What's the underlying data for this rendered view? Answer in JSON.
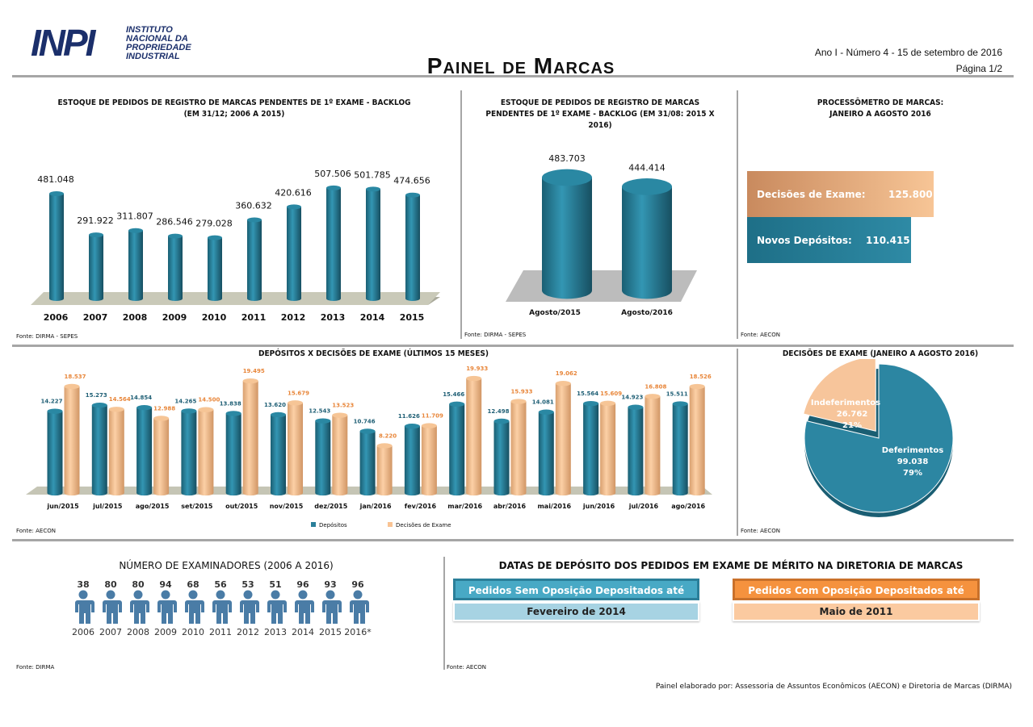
{
  "header": {
    "logo_mark": "INPI",
    "logo_text": "INSTITUTO NACIONAL DA PROPRIEDADE INDUSTRIAL",
    "title": "Painel de Marcas",
    "issue": "Ano I - Número 4 - 15 de setembro de 2016",
    "page": "Página 1/2"
  },
  "colors": {
    "teal": "#2a7f9a",
    "peach": "#f9c393",
    "orange": "#e8863a",
    "light_blue": "#a7d3e3",
    "light_orange": "#fbd0a9",
    "dark": "#1b2f6b"
  },
  "chart_data": [
    {
      "id": "backlog",
      "type": "bar",
      "title": "ESTOQUE DE PEDIDOS DE REGISTRO DE MARCAS PENDENTES DE 1º EXAME - BACKLOG",
      "subtitle": "(EM 31/12; 2006 A 2015)",
      "categories": [
        "2006",
        "2007",
        "2008",
        "2009",
        "2010",
        "2011",
        "2012",
        "2013",
        "2014",
        "2015"
      ],
      "values": [
        481048,
        291922,
        311807,
        286546,
        279028,
        360632,
        420616,
        507506,
        501785,
        474656
      ],
      "labels": [
        "481.048",
        "291.922",
        "311.807",
        "286.546",
        "279.028",
        "360.632",
        "420.616",
        "507.506",
        "501.785",
        "474.656"
      ],
      "source": "Fonte: DIRMA - SEPES"
    },
    {
      "id": "backlog_aug",
      "type": "bar",
      "title": "ESTOQUE DE PEDIDOS DE REGISTRO DE MARCAS",
      "subtitle": "PENDENTES DE 1º EXAME - BACKLOG (EM 31/08: 2015 X 2016)",
      "categories": [
        "Agosto/2015",
        "Agosto/2016"
      ],
      "values": [
        483703,
        444414
      ],
      "labels": [
        "483.703",
        "444.414"
      ],
      "source": "Fonte: DIRMA - SEPES"
    },
    {
      "id": "processometro",
      "type": "bar",
      "title": "PROCESSÔMETRO DE MARCAS:",
      "subtitle": "JANEIRO A AGOSTO 2016",
      "categories": [
        "Decisões de Exame:",
        "Novos Depósitos:"
      ],
      "values": [
        125800,
        110415
      ],
      "labels": [
        "125.800",
        "110.415"
      ],
      "source": "Fonte: AECON"
    },
    {
      "id": "depositos_decisoes",
      "type": "bar",
      "title": "DEPÓSITOS X DECISÕES DE EXAME (ÚLTIMOS 15 MESES)",
      "categories": [
        "jun/2015",
        "jul/2015",
        "ago/2015",
        "set/2015",
        "out/2015",
        "nov/2015",
        "dez/2015",
        "jan/2016",
        "fev/2016",
        "mar/2016",
        "abr/2016",
        "mai/2016",
        "jun/2016",
        "jul/2016",
        "ago/2016"
      ],
      "series": [
        {
          "name": "Depósitos",
          "values": [
            14227,
            15273,
            14854,
            14265,
            13838,
            13620,
            12543,
            10746,
            11626,
            15466,
            12498,
            14081,
            15564,
            14923,
            15511
          ],
          "labels": [
            "14.227",
            "15.273",
            "14.854",
            "14.265",
            "13.838",
            "13.620",
            "12.543",
            "10.746",
            "11.626",
            "15.466",
            "12.498",
            "14.081",
            "15.564",
            "14.923",
            "15.511"
          ]
        },
        {
          "name": "Decisões de Exame",
          "values": [
            18537,
            14564,
            12988,
            14500,
            19495,
            15679,
            13523,
            8220,
            11709,
            19933,
            15933,
            19062,
            15609,
            16808,
            18526
          ],
          "labels": [
            "18.537",
            "14.564",
            "12.988",
            "14.500",
            "19.495",
            "15.679",
            "13.523",
            "8.220",
            "11.709",
            "19.933",
            "15.933",
            "19.062",
            "15.609",
            "16.808",
            "18.526"
          ]
        }
      ],
      "legend": "bottom",
      "source": "Fonte: AECON"
    },
    {
      "id": "decisoes_pie",
      "type": "pie",
      "title": "DECISÕES DE EXAME (JANEIRO A AGOSTO 2016)",
      "slices": [
        {
          "name": "Deferimentos",
          "value": 99038,
          "label": "99.038",
          "pct": "79%"
        },
        {
          "name": "Indeferimentos",
          "value": 26762,
          "label": "26.762",
          "pct": "21%"
        }
      ],
      "source": "Fonte: AECON"
    },
    {
      "id": "examinadores",
      "type": "table",
      "title": "NÚMERO DE EXAMINADORES (2006 A 2016)",
      "categories": [
        "2006",
        "2007",
        "2008",
        "2009",
        "2010",
        "2011",
        "2012",
        "2013",
        "2014",
        "2015",
        "2016*"
      ],
      "values": [
        38,
        80,
        80,
        94,
        68,
        56,
        53,
        51,
        96,
        93,
        96
      ],
      "source": "Fonte: DIRMA"
    }
  ],
  "datas": {
    "title": "DATAS DE DEPÓSITO DOS PEDIDOS EM EXAME DE MÉRITO NA DIRETORIA DE MARCAS",
    "sem_label": "Pedidos Sem Oposição Depositados até",
    "sem_value": "Fevereiro de 2014",
    "com_label": "Pedidos Com Oposição Depositados até",
    "com_value": "Maio de 2011",
    "source": "Fonte: AECON"
  },
  "footer": "Painel elaborado por: Assessoria de Assuntos Econômicos (AECON) e Diretoria de Marcas (DIRMA)"
}
